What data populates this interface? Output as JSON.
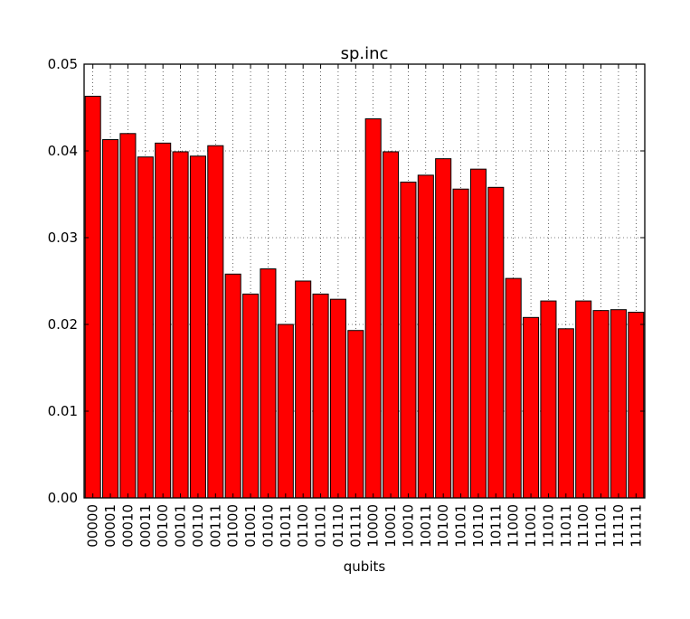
{
  "chart_data": {
    "type": "bar",
    "title": "sp.inc",
    "xlabel": "qubits",
    "ylabel": "",
    "ylim": [
      0,
      0.05
    ],
    "yticks": [
      "0.00",
      "0.01",
      "0.02",
      "0.03",
      "0.04",
      "0.05"
    ],
    "grid": true,
    "bar_color": "#ff0000",
    "categories": [
      "00000",
      "00001",
      "00010",
      "00011",
      "00100",
      "00101",
      "00110",
      "00111",
      "01000",
      "01001",
      "01010",
      "01011",
      "01100",
      "01101",
      "01110",
      "01111",
      "10000",
      "10001",
      "10010",
      "10011",
      "10100",
      "10101",
      "10110",
      "10111",
      "11000",
      "11001",
      "11010",
      "11011",
      "11100",
      "11101",
      "11110",
      "11111"
    ],
    "values": [
      0.0463,
      0.0413,
      0.042,
      0.0393,
      0.0409,
      0.0399,
      0.0394,
      0.0406,
      0.0258,
      0.0235,
      0.0264,
      0.02,
      0.025,
      0.0235,
      0.0229,
      0.0193,
      0.0437,
      0.0399,
      0.0364,
      0.0372,
      0.0391,
      0.0356,
      0.0379,
      0.0358,
      0.0253,
      0.0208,
      0.0227,
      0.0195,
      0.0227,
      0.0216,
      0.0217,
      0.0214
    ]
  }
}
